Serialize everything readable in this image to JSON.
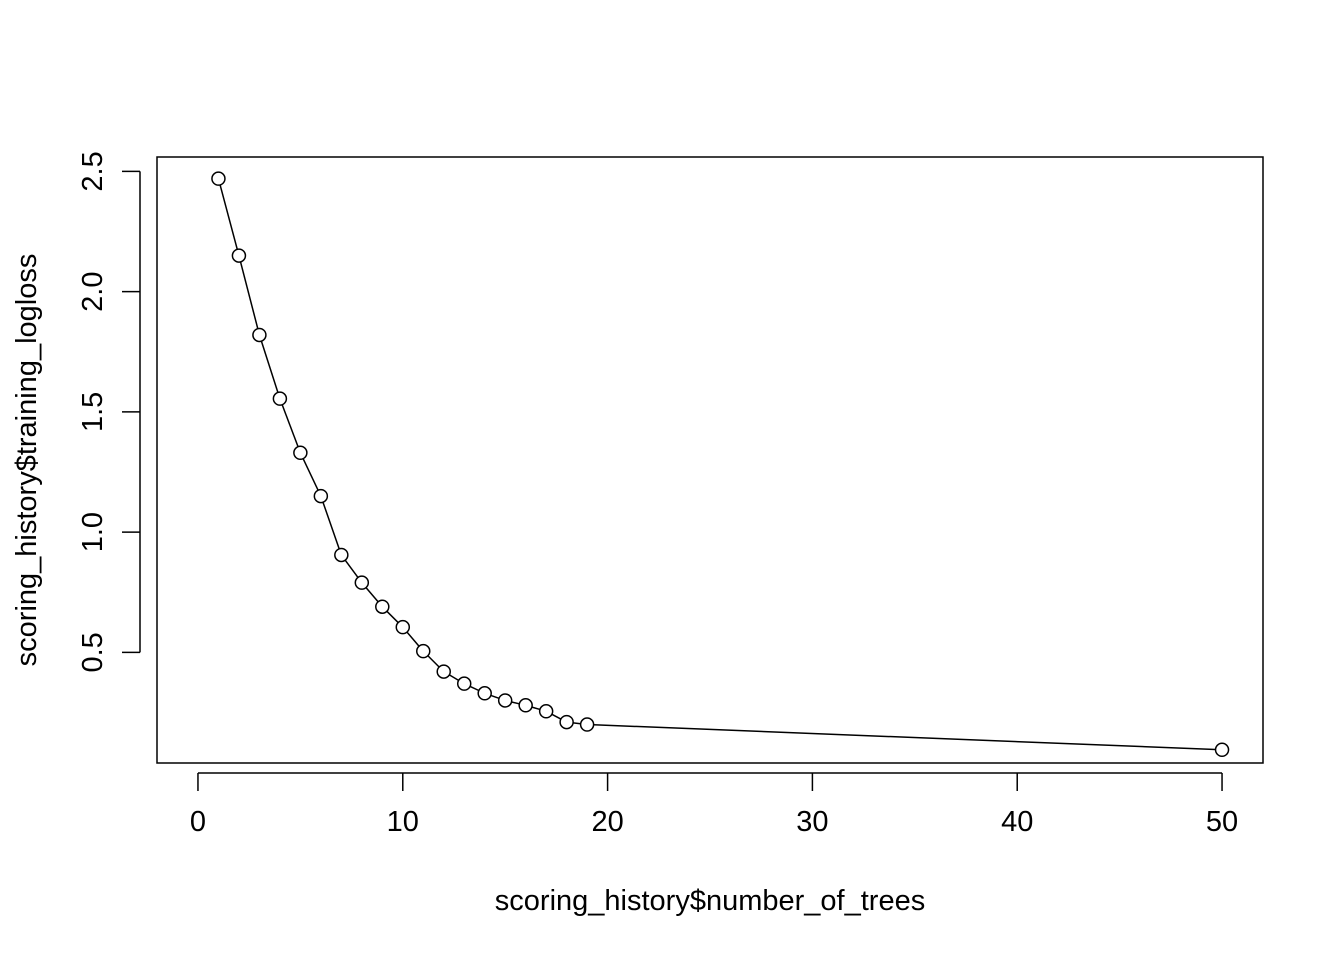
{
  "chart_data": {
    "type": "line",
    "title": "",
    "xlabel": "scoring_history$number_of_trees",
    "ylabel": "scoring_history$training_logloss",
    "xlim": [
      -2,
      52
    ],
    "ylim": [
      0.04,
      2.56
    ],
    "x_ticks": [
      0,
      10,
      20,
      30,
      40,
      50
    ],
    "y_ticks": [
      0.5,
      1.0,
      1.5,
      2.0,
      2.5
    ],
    "x_tick_labels": [
      "0",
      "10",
      "20",
      "30",
      "40",
      "50"
    ],
    "y_tick_labels": [
      "0.5",
      "1.0",
      "1.5",
      "2.0",
      "2.5"
    ],
    "grid": false,
    "series": [
      {
        "marker": "open-circle",
        "color": "#000000",
        "points": [
          {
            "x": 1,
            "y": 2.47
          },
          {
            "x": 2,
            "y": 2.15
          },
          {
            "x": 3,
            "y": 1.82
          },
          {
            "x": 4,
            "y": 1.555
          },
          {
            "x": 5,
            "y": 1.33
          },
          {
            "x": 6,
            "y": 1.15
          },
          {
            "x": 7,
            "y": 0.905
          },
          {
            "x": 8,
            "y": 0.79
          },
          {
            "x": 9,
            "y": 0.69
          },
          {
            "x": 10,
            "y": 0.605
          },
          {
            "x": 11,
            "y": 0.505
          },
          {
            "x": 12,
            "y": 0.42
          },
          {
            "x": 13,
            "y": 0.37
          },
          {
            "x": 14,
            "y": 0.33
          },
          {
            "x": 15,
            "y": 0.3
          },
          {
            "x": 16,
            "y": 0.28
          },
          {
            "x": 17,
            "y": 0.255
          },
          {
            "x": 18,
            "y": 0.21
          },
          {
            "x": 19,
            "y": 0.2
          },
          {
            "x": 50,
            "y": 0.095
          }
        ]
      }
    ]
  }
}
